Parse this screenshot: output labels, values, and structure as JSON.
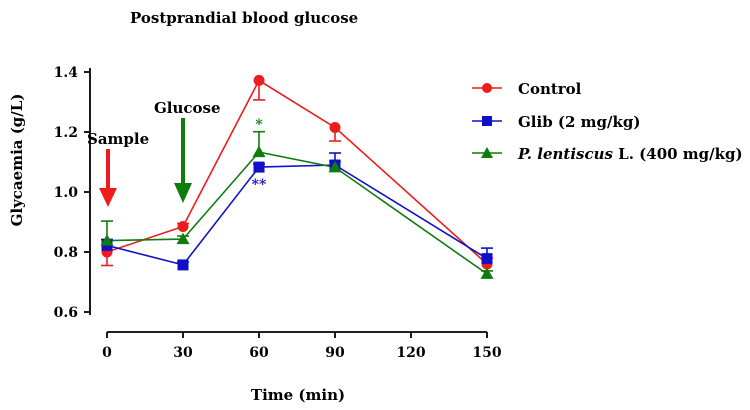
{
  "chart_data": {
    "type": "line",
    "title": "Postprandial blood glucose",
    "xlabel": "Time (min)",
    "ylabel": "Glycaemia (g/L)",
    "x": [
      0,
      30,
      60,
      90,
      150
    ],
    "xticks": [
      0,
      30,
      60,
      90,
      120,
      150
    ],
    "yticks": [
      "0.6",
      "0.8",
      "1.0",
      "1.2",
      "1.4"
    ],
    "xlim": [
      0,
      150
    ],
    "ylim": [
      0.6,
      1.4
    ],
    "grid": false,
    "legend_position": "top-right",
    "series": [
      {
        "name": "Control",
        "color": "#ee1c1c",
        "marker": "circle",
        "values": [
          0.8,
          0.885,
          1.372,
          1.215,
          0.76
        ],
        "errors": [
          0.045,
          0.01,
          0.065,
          0.045,
          0.02
        ],
        "error_dir": [
          "down",
          "up",
          "down",
          "down",
          "up"
        ]
      },
      {
        "name": "Glib (2 mg/kg)",
        "color": "#1010c8",
        "marker": "square",
        "values": [
          0.822,
          0.757,
          1.083,
          1.09,
          0.778
        ],
        "errors": [
          0.02,
          0.01,
          0.01,
          0.04,
          0.035
        ],
        "error_dir": [
          "up",
          "up",
          "up",
          "up",
          "up"
        ]
      },
      {
        "name_italic": "P. lentiscus",
        "name_rest": " L. (400 mg/kg)",
        "color": "#0e7d0e",
        "marker": "triangle",
        "values": [
          0.838,
          0.843,
          1.133,
          1.082,
          0.727
        ],
        "errors": [
          0.065,
          0.01,
          0.068,
          0.02,
          0.01
        ],
        "error_dir": [
          "up",
          "up",
          "up",
          "up",
          "up"
        ]
      }
    ],
    "annotations": [
      {
        "text": "Sample",
        "x": 0,
        "arrow_color": "#ee1c1c"
      },
      {
        "text": "Glucose",
        "x": 30,
        "arrow_color": "#0e7d0e"
      },
      {
        "text": "*",
        "x": 60,
        "color": "#0e7d0e",
        "anchor": "above-error-lentiscus"
      },
      {
        "text": "**",
        "x": 60,
        "color": "#1010c8",
        "anchor": "below-glib"
      }
    ]
  }
}
